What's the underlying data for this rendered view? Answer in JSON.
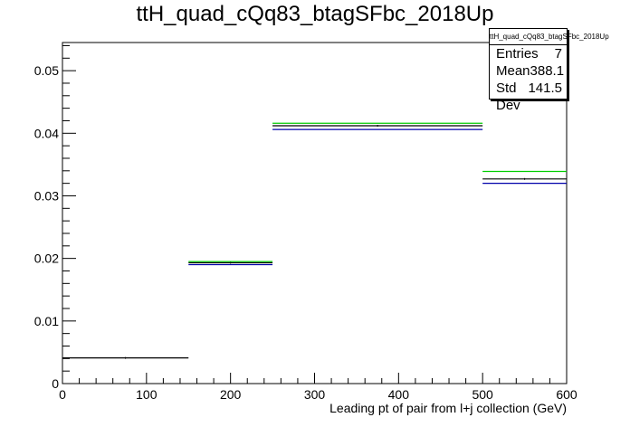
{
  "title": "ttH_quad_cQq83_btagSFbc_2018Up",
  "stats": {
    "title": "ttH_quad_cQq83_btagSFbc_2018Up",
    "rows": [
      {
        "label": "Entries",
        "value": "7"
      },
      {
        "label": "Mean",
        "value": "388.1"
      },
      {
        "label": "Std Dev",
        "value": "141.5"
      }
    ]
  },
  "chart_data": {
    "type": "histogram",
    "title": "ttH_quad_cQq83_btagSFbc_2018Up",
    "xlabel": "Leading pt of pair from l+j collection (GeV)",
    "ylabel": "",
    "xlim": [
      0,
      600
    ],
    "ylim": [
      0,
      0.0545
    ],
    "x_ticks": [
      0,
      100,
      200,
      300,
      400,
      500,
      600
    ],
    "y_ticks": [
      0,
      0.01,
      0.02,
      0.03,
      0.04,
      0.05
    ],
    "y_tick_labels": [
      "0",
      "0.01",
      "0.02",
      "0.03",
      "0.04",
      "0.05"
    ],
    "grid": false,
    "bins": [
      [
        0,
        150
      ],
      [
        150,
        250
      ],
      [
        250,
        500
      ],
      [
        500,
        600
      ]
    ],
    "series": [
      {
        "color": "#000000",
        "values": [
          0.0041,
          0.0193,
          0.0412,
          0.0327
        ]
      },
      {
        "color": "#00cc00",
        "values": [
          null,
          0.0195,
          0.0416,
          0.0339
        ]
      },
      {
        "color": "#0000aa",
        "values": [
          null,
          0.019,
          0.0406,
          0.032
        ]
      }
    ]
  }
}
